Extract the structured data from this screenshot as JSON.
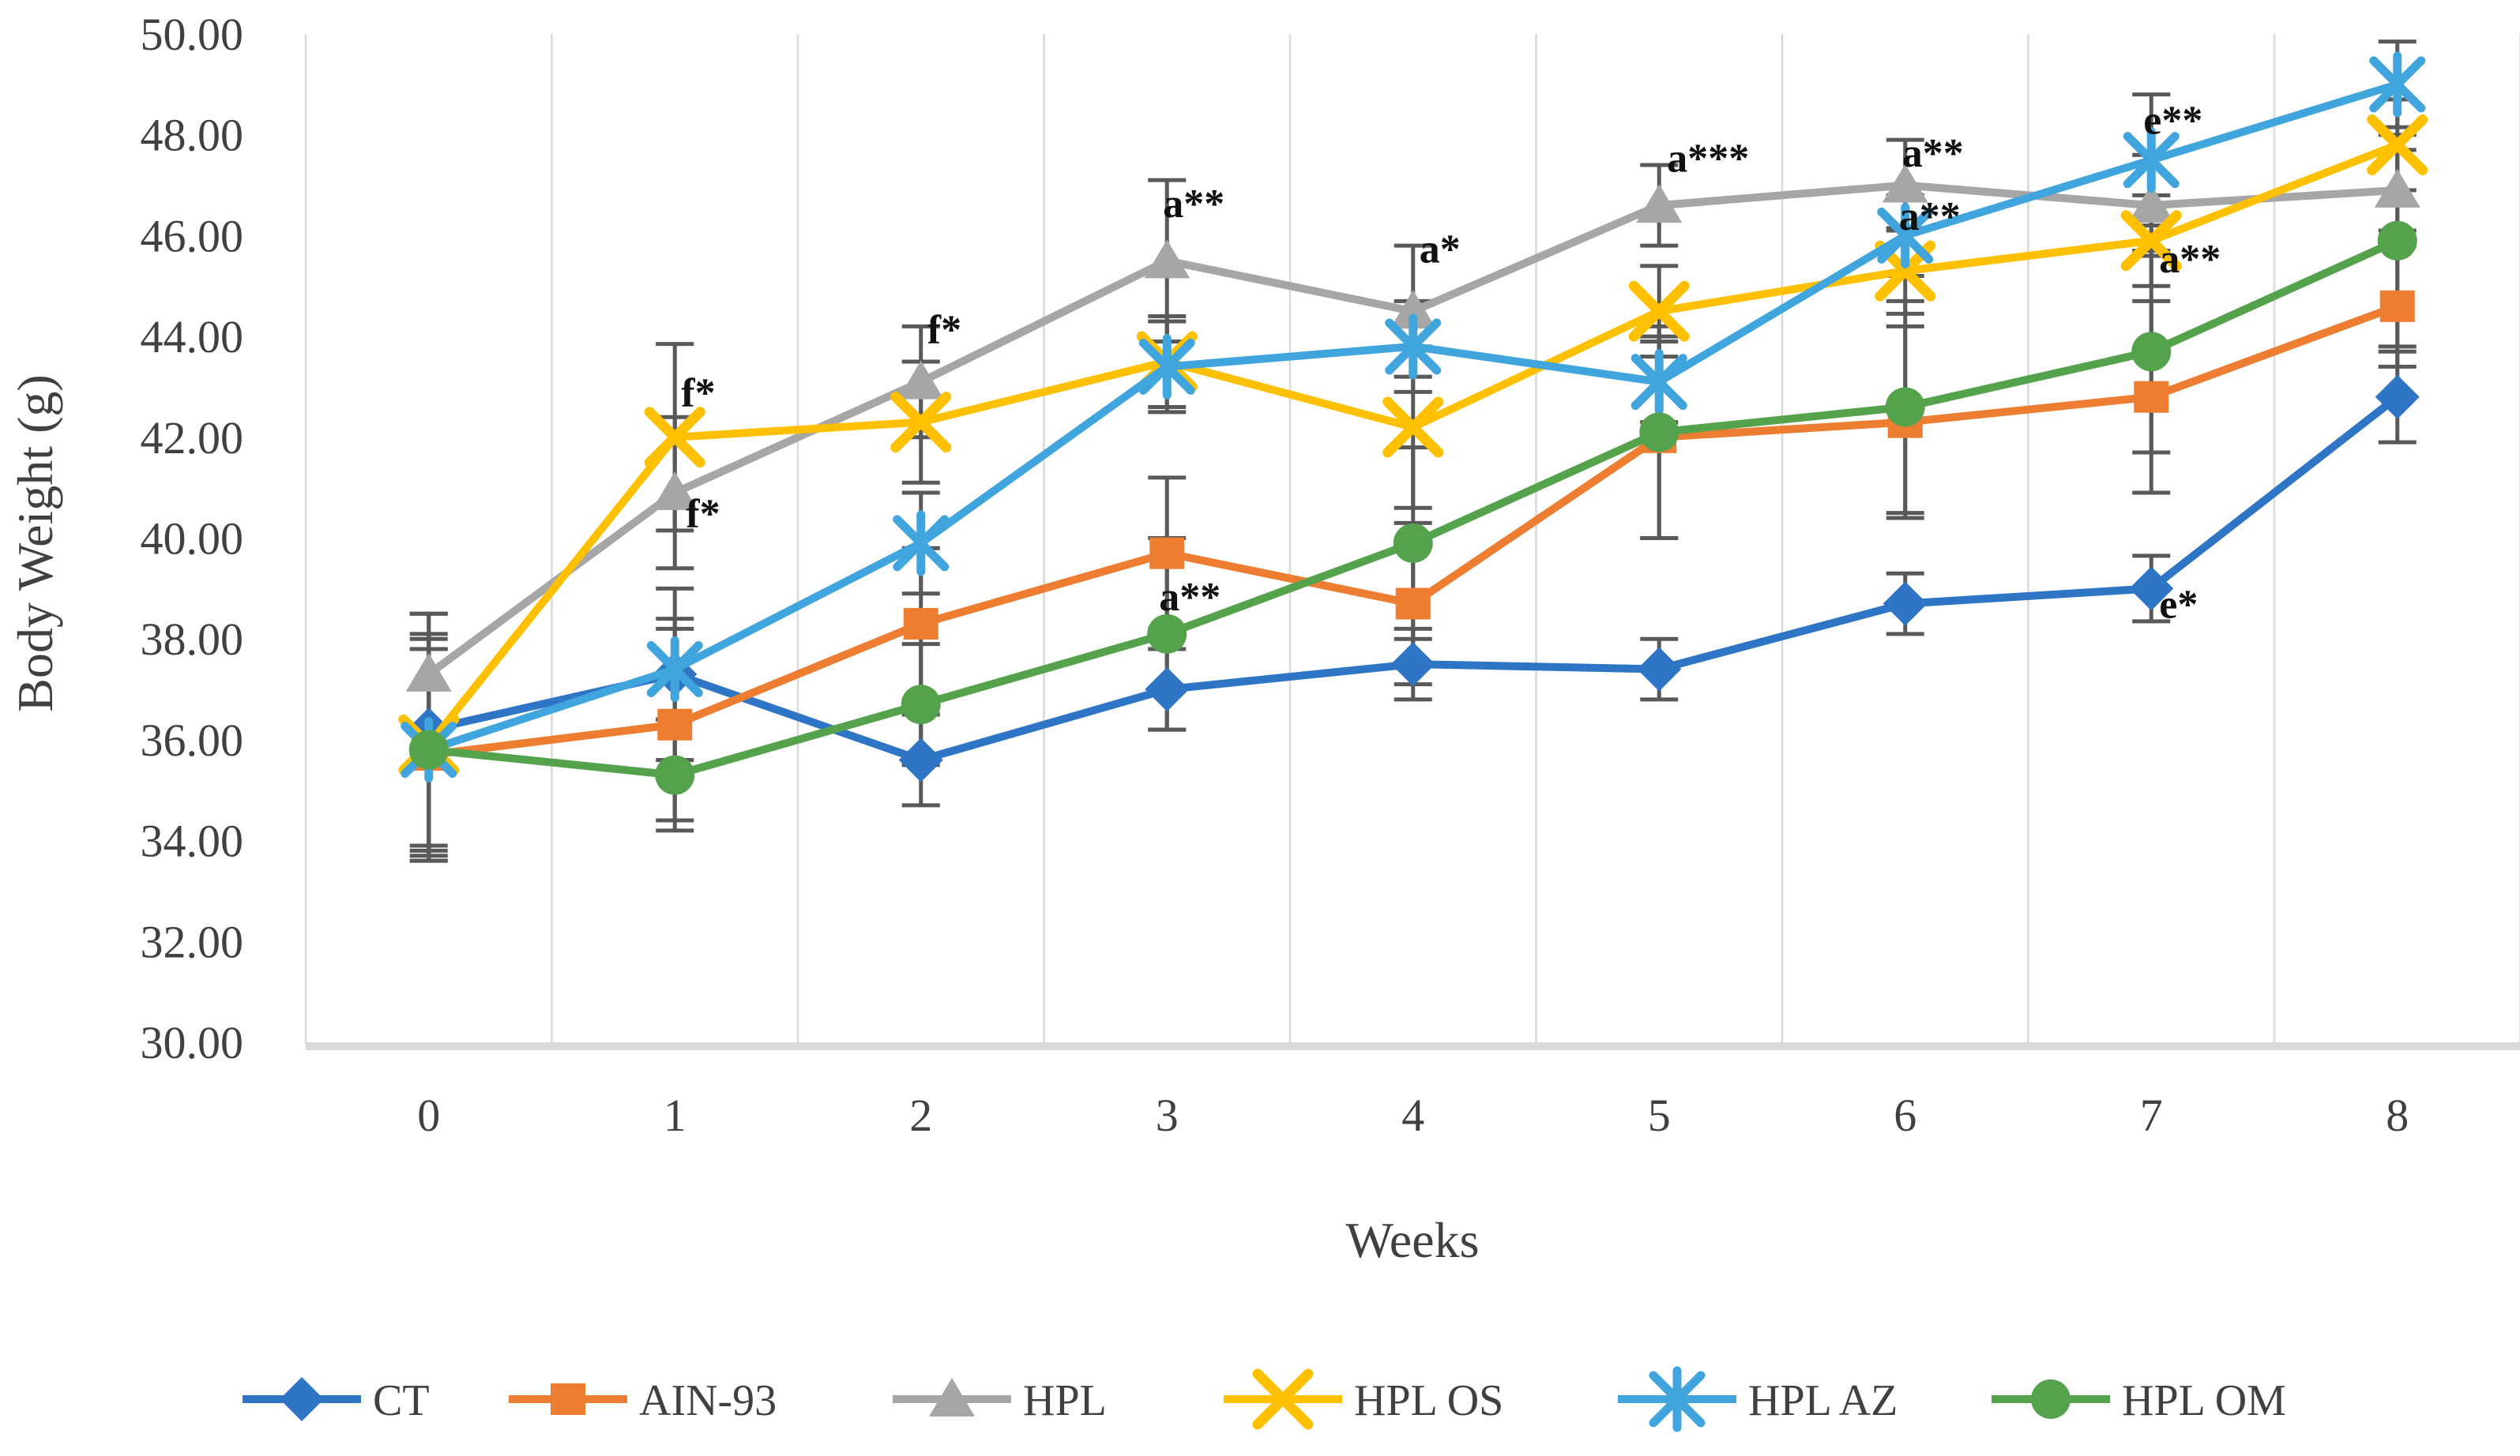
{
  "chart_data": {
    "type": "line",
    "title": "",
    "xlabel": "Weeks",
    "ylabel": "Body Weight (g)",
    "x": [
      0,
      1,
      2,
      3,
      4,
      5,
      6,
      7,
      8
    ],
    "xtick_labels": [
      "0",
      "1",
      "2",
      "3",
      "4",
      "5",
      "6",
      "7",
      "8"
    ],
    "ylim": [
      30,
      50
    ],
    "ytick_step": 2,
    "ytick_labels": [
      "30.00",
      "32.00",
      "34.00",
      "36.00",
      "38.00",
      "40.00",
      "42.00",
      "44.00",
      "46.00",
      "48.00",
      "50.00"
    ],
    "grid": "vertical-only",
    "legend_position": "bottom",
    "colors": {
      "gridline": "#D9D9D9",
      "axis_band": "#D9D9D9",
      "error_bar": "#595959",
      "axis_text": "#404040",
      "annotation_text": "#111111"
    },
    "series": [
      {
        "name": "CT",
        "color": "#2E75C6",
        "marker": "diamond",
        "values": [
          36.2,
          37.3,
          35.6,
          37.0,
          37.5,
          37.4,
          38.7,
          39.0,
          42.8
        ],
        "err": [
          2.3,
          1.7,
          0.9,
          0.8,
          0.7,
          0.6,
          0.6,
          0.65,
          0.9
        ]
      },
      {
        "name": "AIN-93",
        "color": "#ED7D31",
        "marker": "square",
        "values": [
          35.7,
          36.3,
          38.3,
          39.7,
          38.7,
          42.0,
          42.3,
          42.8,
          44.6
        ],
        "err": [
          2.1,
          1.9,
          1.5,
          1.5,
          1.6,
          2.0,
          1.9,
          1.9,
          1.2
        ]
      },
      {
        "name": "HPL",
        "color": "#A6A6A6",
        "marker": "triangle",
        "values": [
          37.3,
          40.9,
          43.1,
          45.5,
          44.5,
          46.6,
          47.0,
          46.6,
          46.9
        ],
        "err": [
          1.2,
          1.5,
          1.1,
          1.6,
          1.3,
          0.8,
          0.9,
          1.0,
          0.8
        ]
      },
      {
        "name": "HPL OS",
        "color": "#FFC000",
        "marker": "x",
        "values": [
          35.9,
          42.0,
          42.3,
          43.5,
          42.2,
          44.5,
          45.3,
          45.9,
          47.8
        ],
        "err": [
          2.2,
          1.85,
          1.2,
          0.9,
          1.6,
          0.9,
          0.85,
          0.9,
          0.9
        ]
      },
      {
        "name": "HPL AZ",
        "color": "#41A5DD",
        "marker": "asterisk",
        "values": [
          35.8,
          37.4,
          39.9,
          43.4,
          43.8,
          43.1,
          46.0,
          47.5,
          49.0
        ],
        "err": [
          2.2,
          1.0,
          1.0,
          0.9,
          0.9,
          0.8,
          0.8,
          1.3,
          0.85
        ]
      },
      {
        "name": "HPL OM",
        "color": "#54A24B",
        "marker": "circle",
        "values": [
          35.8,
          35.3,
          36.7,
          38.1,
          39.9,
          42.1,
          42.6,
          43.7,
          45.9
        ],
        "err": [
          2.0,
          1.1,
          1.2,
          1.9,
          1.9,
          2.1,
          2.1,
          2.0,
          2.1
        ]
      }
    ],
    "annotations": [
      {
        "week": 1,
        "text": "f*",
        "y": 42.9,
        "dx": 8
      },
      {
        "week": 1,
        "text": "f*",
        "y": 40.5,
        "dx": 14
      },
      {
        "week": 2,
        "text": "f*",
        "y": 44.15,
        "dx": 8
      },
      {
        "week": 3,
        "text": "a**",
        "y": 46.65,
        "dx": -5
      },
      {
        "week": 3,
        "text": "a**",
        "y": 38.85,
        "dx": -10
      },
      {
        "week": 4,
        "text": "a*",
        "y": 45.75,
        "dx": 8
      },
      {
        "week": 5,
        "text": "a***",
        "y": 47.55,
        "dx": 10
      },
      {
        "week": 6,
        "text": "a**",
        "y": 47.65,
        "dx": -4
      },
      {
        "week": 6,
        "text": "a**",
        "y": 46.4,
        "dx": -8
      },
      {
        "week": 7,
        "text": "e**",
        "y": 48.3,
        "dx": -10
      },
      {
        "week": 7,
        "text": "a**",
        "y": 45.55,
        "dx": 10
      },
      {
        "week": 7,
        "text": "e*",
        "y": 38.7,
        "dx": 10
      }
    ]
  }
}
